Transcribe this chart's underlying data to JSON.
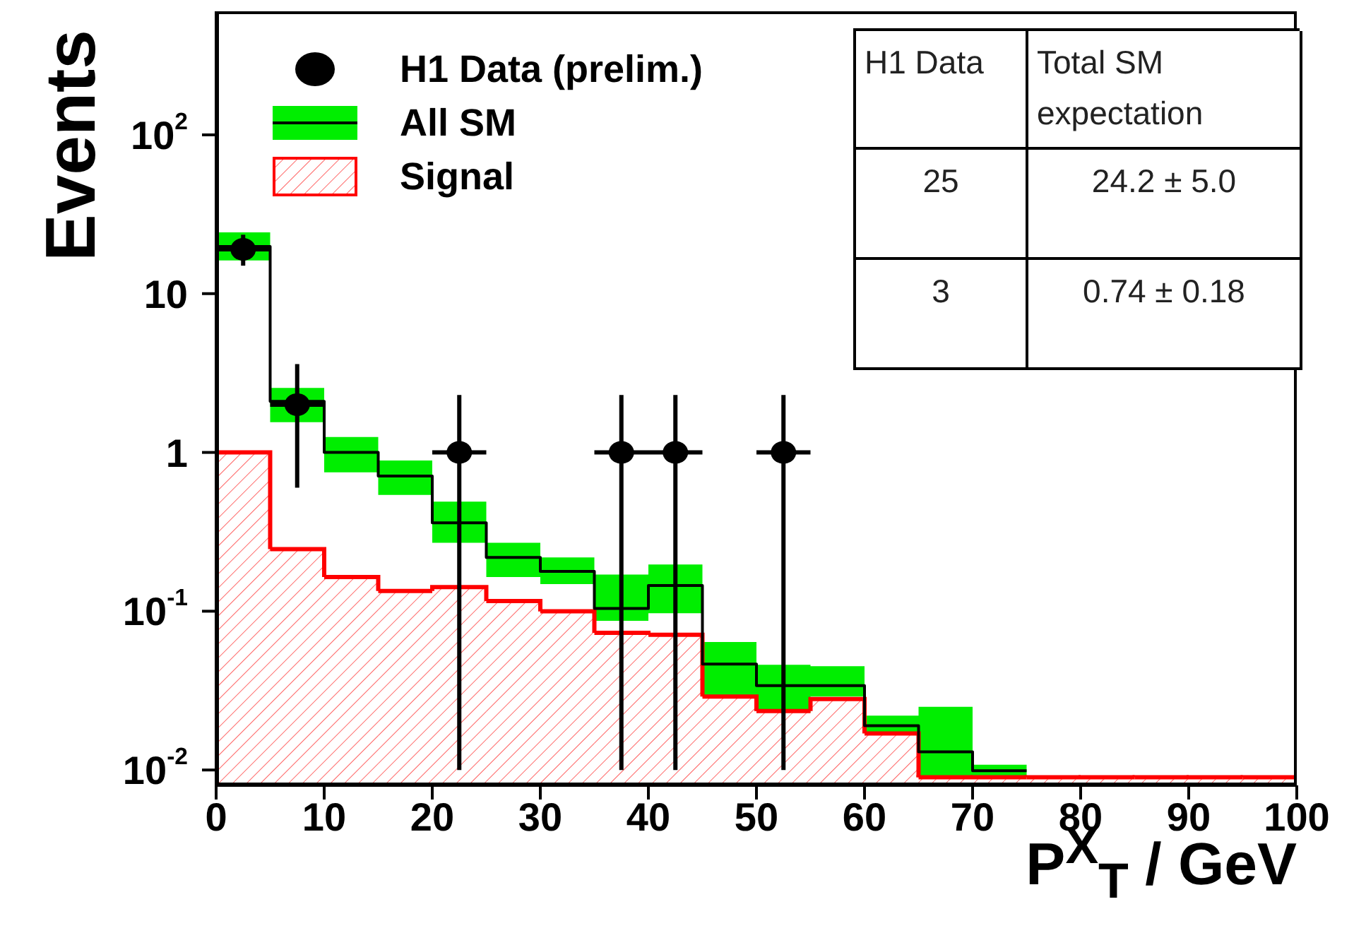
{
  "chart_data": {
    "type": "histogram",
    "ylabel": "Events",
    "xlabel": "P$^{X}$$_{T}$ / GeV",
    "bins": [
      0,
      5,
      10,
      15,
      20,
      25,
      30,
      35,
      40,
      45,
      50,
      55,
      60,
      65,
      70,
      75,
      80,
      85,
      90,
      95,
      100
    ],
    "series": [
      {
        "name": "H1 Data (prelim.)",
        "type": "scatter",
        "color": "#000000",
        "x": [
          2.5,
          7.5,
          22.5,
          37.5,
          42.5,
          52.5
        ],
        "values": [
          19,
          2,
          1,
          1,
          1,
          1
        ],
        "errors": [
          [
            15,
            23.5
          ],
          [
            0.6,
            3.6
          ],
          [
            0.01,
            2.3
          ],
          [
            0.01,
            2.3
          ],
          [
            0.01,
            2.3
          ],
          [
            0.01,
            2.3
          ]
        ],
        "xerrors": [
          2.5,
          2.5,
          2.5,
          2.5,
          2.5,
          2.5
        ]
      },
      {
        "name": "All SM",
        "type": "step",
        "color": "#000000",
        "x": [
          0,
          5,
          10,
          15,
          20,
          25,
          30,
          35,
          40,
          45,
          50,
          55,
          60,
          65,
          70,
          75
        ],
        "marker": "none",
        "values": [
          19.8,
          2.1,
          1.0,
          0.71,
          0.36,
          0.218,
          0.178,
          0.104,
          0.145,
          0.0465,
          0.034,
          0.034,
          0.019,
          0.013,
          0.0099,
          0.0099
        ],
        "lower": [
          16.2,
          1.55,
          0.75,
          0.54,
          0.27,
          0.164,
          0.148,
          0.087,
          0.097,
          0.029,
          0.023,
          0.029,
          0.017,
          0.009,
          0.009,
          0.009
        ],
        "upper": [
          24.3,
          2.55,
          1.25,
          0.89,
          0.49,
          0.27,
          0.218,
          0.17,
          0.197,
          0.064,
          0.046,
          0.045,
          0.022,
          0.025,
          0.0108,
          0.0108
        ]
      },
      {
        "name": "Signal",
        "color": "#ff0000",
        "values": [
          1.0,
          0.246,
          0.164,
          0.134,
          0.142,
          0.116,
          0.1,
          0.073,
          0.071,
          0.029,
          0.0235,
          0.028,
          0.017,
          0.009,
          0.009,
          0.009,
          0.009,
          0.009,
          0.009,
          0.009
        ]
      }
    ],
    "xlim": [
      0,
      100
    ],
    "xticks": [
      0,
      10,
      20,
      30,
      40,
      50,
      60,
      70,
      80,
      90,
      100
    ],
    "ylim": [
      0.008,
      600
    ],
    "yticks": [
      {
        "value": 0.01,
        "label": "10$^{-2}$"
      },
      {
        "value": 0.1,
        "label": "10$^{-1}$"
      },
      1,
      10,
      {
        "value": 100,
        "label": "10$^{2}$"
      }
    ],
    "log": "y",
    "grid": false,
    "legend": "top left",
    "marker": "circle",
    "annotations": [
      "H1 Data",
      "Total  SM expectation",
      "25",
      "24.2 ± 5.0",
      "3",
      "0.74 ± 0.18"
    ]
  }
}
